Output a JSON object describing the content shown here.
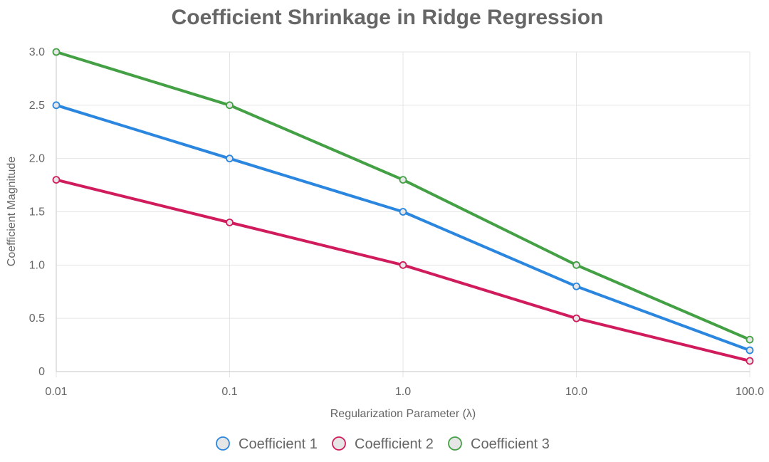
{
  "chart_data": {
    "type": "line",
    "title": "Coefficient Shrinkage in Ridge Regression",
    "xlabel": "Regularization Parameter (λ)",
    "ylabel": "Coefficient Magnitude",
    "x_scale": "log",
    "x": [
      0.01,
      0.1,
      1.0,
      10.0,
      100.0
    ],
    "x_tick_labels": [
      "0.01",
      "0.1",
      "1.0",
      "10.0",
      "100.0"
    ],
    "xlim": [
      0.01,
      100.0
    ],
    "y_ticks": [
      0,
      0.5,
      1.0,
      1.5,
      2.0,
      2.5,
      3.0
    ],
    "y_tick_labels": [
      "0",
      "0.5",
      "1.0",
      "1.5",
      "2.0",
      "2.5",
      "3.0"
    ],
    "ylim": [
      0,
      3.0
    ],
    "grid": true,
    "legend_position": "bottom",
    "series": [
      {
        "name": "Coefficient 1",
        "color": "#2a86de",
        "values": [
          2.5,
          2.0,
          1.5,
          0.8,
          0.2
        ]
      },
      {
        "name": "Coefficient 2",
        "color": "#d01c5c",
        "values": [
          1.8,
          1.4,
          1.0,
          0.5,
          0.1
        ]
      },
      {
        "name": "Coefficient 3",
        "color": "#44a044",
        "values": [
          3.0,
          2.5,
          1.8,
          1.0,
          0.3
        ]
      }
    ]
  }
}
